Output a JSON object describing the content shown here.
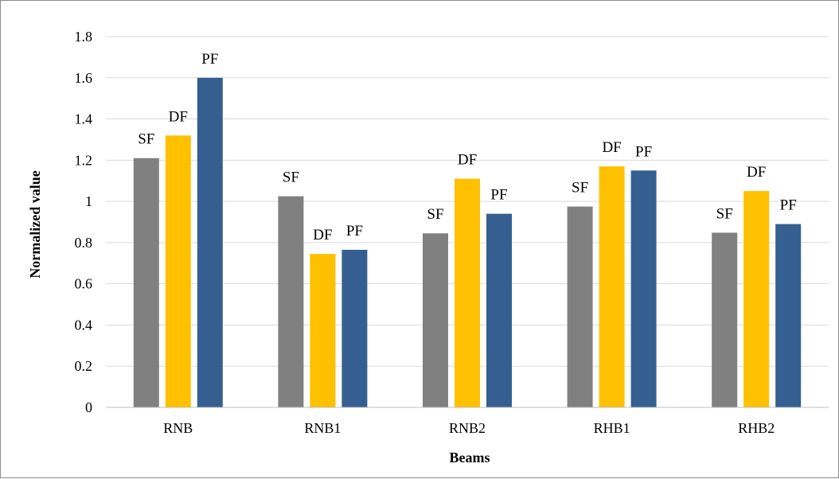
{
  "chart_data": {
    "type": "bar",
    "xlabel": "Beams",
    "ylabel": "Normalized value",
    "categories": [
      "RNB",
      "RNB1",
      "RNB2",
      "RHB1",
      "RHB2"
    ],
    "ylim": [
      0,
      1.8
    ],
    "yticks": [
      "0",
      "0.2",
      "0.4",
      "0.6",
      "0.8",
      "1",
      "1.2",
      "1.4",
      "1.6",
      "1.8"
    ],
    "grid": true,
    "series": [
      {
        "name": "SF",
        "color": "#808080",
        "values": [
          1.21,
          1.025,
          0.845,
          0.975,
          0.848
        ]
      },
      {
        "name": "DF",
        "color": "#ffc000",
        "values": [
          1.32,
          0.745,
          1.11,
          1.17,
          1.05
        ]
      },
      {
        "name": "PF",
        "color": "#355f91",
        "values": [
          1.6,
          0.765,
          0.94,
          1.15,
          0.89
        ]
      }
    ]
  }
}
